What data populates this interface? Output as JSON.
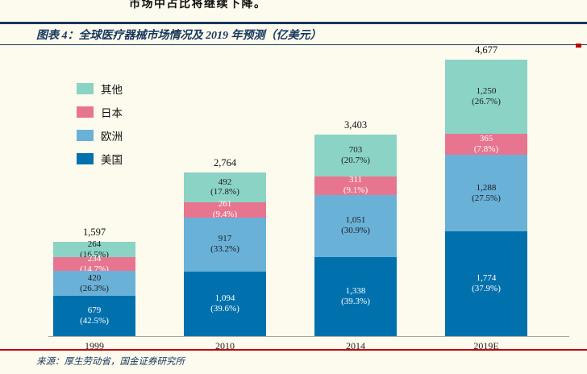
{
  "page": {
    "top_text": "市场中占比将继续下降。",
    "source": "来源：厚生劳动省，国金证券研究所"
  },
  "header": {
    "title": "图表 4：全球医疗器械市场情况及 2019 年预测（亿美元）"
  },
  "colors": {
    "background": "#fdfbee",
    "title_navy": "#17375e",
    "accent_red": "#c00000",
    "axis_gray": "#a6a6a6",
    "us": "#0071ad",
    "europe": "#6ab1d8",
    "japan": "#e8758f",
    "other": "#8ad3c5"
  },
  "chart_data": {
    "type": "bar",
    "stacked": true,
    "title": "全球医疗器械市场情况及2019年预测（亿美元）",
    "categories": [
      "1999",
      "2010",
      "2014",
      "2019E"
    ],
    "totals": [
      "1,597",
      "2,764",
      "3,403",
      "4,677"
    ],
    "ylim": [
      0,
      4800
    ],
    "grid": false,
    "legend_position": "upper-left",
    "legend": [
      {
        "key": "other",
        "label": "其他",
        "color_key": "other"
      },
      {
        "key": "japan",
        "label": "日本",
        "color_key": "japan"
      },
      {
        "key": "europe",
        "label": "欧洲",
        "color_key": "europe"
      },
      {
        "key": "us",
        "label": "美国",
        "color_key": "us"
      }
    ],
    "series": [
      {
        "key": "us",
        "name": "美国",
        "color_key": "us",
        "text_color": "#ffffff",
        "values": [
          679,
          1094,
          1338,
          1774
        ],
        "value_labels": [
          "679",
          "1,094",
          "1,338",
          "1,774"
        ],
        "pcts": [
          "42.5%",
          "39.6%",
          "39.3%",
          "37.9%"
        ]
      },
      {
        "key": "europe",
        "name": "欧洲",
        "color_key": "europe",
        "text_color": "#1a1a1a",
        "values": [
          420,
          917,
          1051,
          1288
        ],
        "value_labels": [
          "420",
          "917",
          "1,051",
          "1,288"
        ],
        "pcts": [
          "26.3%",
          "33.2%",
          "30.9%",
          "27.5%"
        ]
      },
      {
        "key": "japan",
        "name": "日本",
        "color_key": "japan",
        "text_color": "#ffffff",
        "values": [
          234,
          261,
          311,
          365
        ],
        "value_labels": [
          "234",
          "261",
          "311",
          "365"
        ],
        "pcts": [
          "14.7%",
          "9.4%",
          "9.1%",
          "7.8%"
        ]
      },
      {
        "key": "other",
        "name": "其他",
        "color_key": "other",
        "text_color": "#1a1a1a",
        "values": [
          264,
          492,
          703,
          1250
        ],
        "value_labels": [
          "264",
          "492",
          "703",
          "1,250"
        ],
        "pcts": [
          "16.5%",
          "17.8%",
          "20.7%",
          "26.7%"
        ]
      }
    ]
  }
}
